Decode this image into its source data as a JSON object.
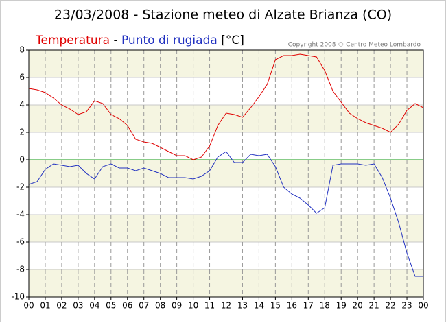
{
  "chart_data": {
    "type": "line",
    "title": "23/03/2008 - Stazione meteo di Alzate Brianza (CO)",
    "legend_separator": "-",
    "unit": "[°C]",
    "copyright": "Copyright 2008 © Centro Meteo Lombardo",
    "x": [
      0,
      0.5,
      1,
      1.5,
      2,
      2.5,
      3,
      3.5,
      4,
      4.5,
      5,
      5.5,
      6,
      6.5,
      7,
      7.5,
      8,
      8.5,
      9,
      9.5,
      10,
      10.5,
      11,
      11.5,
      12,
      12.5,
      13,
      13.5,
      14,
      14.5,
      15,
      15.5,
      16,
      16.5,
      17,
      17.5,
      18,
      18.5,
      19,
      19.5,
      20,
      20.5,
      21,
      21.5,
      22,
      22.5,
      23,
      23.5,
      24
    ],
    "series": [
      {
        "name": "Temperatura",
        "color": "#e00000",
        "values": [
          5.2,
          5.1,
          4.9,
          4.5,
          4.0,
          3.7,
          3.3,
          3.5,
          4.3,
          4.1,
          3.3,
          3.0,
          2.5,
          1.5,
          1.3,
          1.2,
          0.9,
          0.6,
          0.3,
          0.3,
          0.0,
          0.2,
          1.0,
          2.5,
          3.4,
          3.3,
          3.1,
          3.8,
          4.6,
          5.5,
          7.3,
          7.6,
          7.6,
          7.7,
          7.6,
          7.5,
          6.5,
          5.0,
          4.2,
          3.4,
          3.0,
          2.7,
          2.5,
          2.3,
          2.0,
          2.6,
          3.6,
          4.1,
          3.8
        ]
      },
      {
        "name": "Punto di rugiada",
        "color": "#2030c0",
        "values": [
          -1.8,
          -1.6,
          -0.7,
          -0.3,
          -0.4,
          -0.5,
          -0.4,
          -1.0,
          -1.4,
          -0.5,
          -0.3,
          -0.6,
          -0.6,
          -0.8,
          -0.6,
          -0.8,
          -1.0,
          -1.3,
          -1.3,
          -1.3,
          -1.4,
          -1.2,
          -0.8,
          0.2,
          0.6,
          -0.2,
          -0.2,
          0.4,
          0.3,
          0.4,
          -0.5,
          -2.0,
          -2.5,
          -2.8,
          -3.3,
          -3.9,
          -3.5,
          -0.4,
          -0.3,
          -0.3,
          -0.3,
          -0.4,
          -0.3,
          -1.3,
          -2.8,
          -4.6,
          -6.8,
          -8.5,
          -8.5
        ]
      }
    ],
    "xlim": [
      0,
      24
    ],
    "xticks": [
      {
        "value": 0,
        "label": "00"
      },
      {
        "value": 1,
        "label": "01"
      },
      {
        "value": 2,
        "label": "02"
      },
      {
        "value": 3,
        "label": "03"
      },
      {
        "value": 4,
        "label": "04"
      },
      {
        "value": 5,
        "label": "05"
      },
      {
        "value": 6,
        "label": "06"
      },
      {
        "value": 7,
        "label": "07"
      },
      {
        "value": 8,
        "label": "08"
      },
      {
        "value": 9,
        "label": "09"
      },
      10,
      11,
      12,
      13,
      14,
      15,
      16,
      17,
      18,
      19,
      20,
      21,
      22,
      23,
      {
        "value": 24,
        "label": "00"
      }
    ],
    "ylim": [
      -10,
      8
    ],
    "yticks": [
      8,
      6,
      4,
      2,
      0,
      -2,
      -4,
      -6,
      -8,
      -10
    ],
    "grid": true,
    "band_color": "#f5f5e1",
    "zero_line_color": "#119911"
  }
}
